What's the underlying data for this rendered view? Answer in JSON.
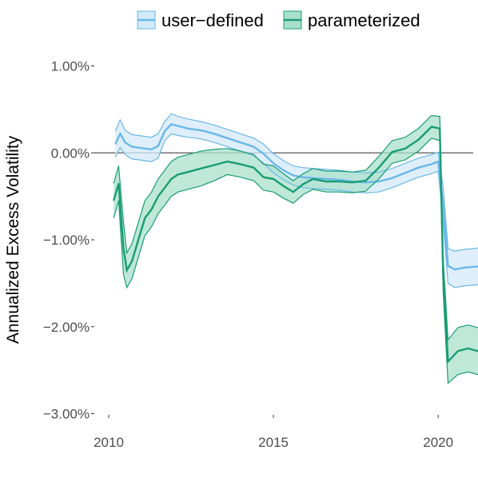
{
  "chart_data": {
    "type": "line",
    "ylabel": "Annualized Excess Volatility",
    "xlabel": "",
    "xlim": [
      2010,
      2021.5
    ],
    "ylim": [
      -3.0,
      1.0
    ],
    "x_ticks": [
      2010,
      2015,
      2020
    ],
    "y_ticks": [
      1.0,
      0.0,
      -1.0,
      -2.0,
      -3.0
    ],
    "y_tick_labels": [
      "1.00%",
      "0.00%",
      "−1.00%",
      "−2.00%",
      "−3.00%"
    ],
    "x_tick_labels": [
      "2010",
      "2015",
      "2020"
    ],
    "reference_line": 0.0,
    "grid": false,
    "legend_position": "top",
    "series": [
      {
        "name": "user−defined",
        "color": "#6bb7e8",
        "band_fill": "#d3eaf9",
        "x": [
          2010.2,
          2010.35,
          2010.5,
          2010.7,
          2010.9,
          2011.1,
          2011.3,
          2011.5,
          2011.7,
          2011.9,
          2012.1,
          2012.4,
          2012.8,
          2013.2,
          2013.6,
          2014.0,
          2014.4,
          2014.7,
          2015.0,
          2015.3,
          2015.6,
          2015.9,
          2016.2,
          2016.6,
          2017.0,
          2017.4,
          2017.8,
          2018.2,
          2018.6,
          2019.0,
          2019.4,
          2019.8,
          2020.0,
          2020.15,
          2020.3,
          2020.5,
          2020.8,
          2021.1,
          2021.4
        ],
        "y": [
          0.1,
          0.22,
          0.12,
          0.07,
          0.06,
          0.05,
          0.04,
          0.08,
          0.25,
          0.33,
          0.31,
          0.28,
          0.26,
          0.22,
          0.17,
          0.12,
          0.07,
          -0.01,
          -0.12,
          -0.2,
          -0.26,
          -0.28,
          -0.29,
          -0.3,
          -0.31,
          -0.33,
          -0.34,
          -0.33,
          -0.29,
          -0.23,
          -0.17,
          -0.13,
          -0.1,
          -0.6,
          -1.3,
          -1.34,
          -1.32,
          -1.31,
          -1.3
        ],
        "lower": [
          -0.05,
          0.06,
          -0.02,
          -0.07,
          -0.08,
          -0.09,
          -0.1,
          -0.06,
          0.14,
          0.22,
          0.2,
          0.18,
          0.16,
          0.12,
          0.07,
          0.02,
          -0.03,
          -0.12,
          -0.23,
          -0.31,
          -0.37,
          -0.4,
          -0.41,
          -0.42,
          -0.43,
          -0.45,
          -0.46,
          -0.45,
          -0.4,
          -0.34,
          -0.28,
          -0.24,
          -0.21,
          -0.8,
          -1.5,
          -1.55,
          -1.53,
          -1.52,
          -1.51
        ],
        "upper": [
          0.25,
          0.38,
          0.26,
          0.21,
          0.2,
          0.19,
          0.18,
          0.22,
          0.36,
          0.45,
          0.42,
          0.39,
          0.36,
          0.32,
          0.27,
          0.22,
          0.17,
          0.1,
          -0.01,
          -0.09,
          -0.15,
          -0.17,
          -0.18,
          -0.19,
          -0.2,
          -0.22,
          -0.23,
          -0.22,
          -0.18,
          -0.12,
          -0.06,
          -0.02,
          0.01,
          -0.4,
          -1.1,
          -1.13,
          -1.11,
          -1.1,
          -1.08
        ]
      },
      {
        "name": "parameterized",
        "color": "#1a9c74",
        "band_fill": "#a9e0cb",
        "x": [
          2010.15,
          2010.3,
          2010.45,
          2010.55,
          2010.7,
          2010.9,
          2011.1,
          2011.3,
          2011.5,
          2011.7,
          2011.9,
          2012.1,
          2012.4,
          2012.8,
          2013.2,
          2013.6,
          2014.0,
          2014.4,
          2014.7,
          2015.0,
          2015.3,
          2015.6,
          2015.9,
          2016.2,
          2016.6,
          2017.0,
          2017.4,
          2017.8,
          2018.2,
          2018.6,
          2019.0,
          2019.4,
          2019.8,
          2020.05,
          2020.15,
          2020.3,
          2020.6,
          2020.9,
          2021.2,
          2021.4
        ],
        "y": [
          -0.55,
          -0.35,
          -1.1,
          -1.35,
          -1.25,
          -1.0,
          -0.75,
          -0.65,
          -0.5,
          -0.4,
          -0.3,
          -0.25,
          -0.22,
          -0.18,
          -0.14,
          -0.1,
          -0.13,
          -0.17,
          -0.28,
          -0.3,
          -0.38,
          -0.45,
          -0.36,
          -0.3,
          -0.33,
          -0.33,
          -0.34,
          -0.32,
          -0.17,
          0.01,
          0.05,
          0.15,
          0.3,
          0.28,
          -1.4,
          -2.4,
          -2.28,
          -2.25,
          -2.28,
          -2.27
        ],
        "lower": [
          -0.75,
          -0.55,
          -1.4,
          -1.55,
          -1.45,
          -1.2,
          -0.95,
          -0.85,
          -0.7,
          -0.6,
          -0.5,
          -0.45,
          -0.42,
          -0.38,
          -0.32,
          -0.25,
          -0.28,
          -0.32,
          -0.43,
          -0.45,
          -0.52,
          -0.58,
          -0.48,
          -0.42,
          -0.45,
          -0.45,
          -0.46,
          -0.44,
          -0.3,
          -0.12,
          -0.08,
          0.02,
          0.17,
          0.14,
          -1.6,
          -2.65,
          -2.55,
          -2.52,
          -2.55,
          -2.54
        ],
        "upper": [
          -0.35,
          -0.15,
          -0.8,
          -1.15,
          -1.05,
          -0.8,
          -0.55,
          -0.45,
          -0.3,
          -0.2,
          -0.1,
          -0.05,
          -0.02,
          0.02,
          0.04,
          0.05,
          0.02,
          -0.02,
          -0.13,
          -0.15,
          -0.24,
          -0.32,
          -0.24,
          -0.18,
          -0.21,
          -0.21,
          -0.22,
          -0.2,
          -0.04,
          0.14,
          0.18,
          0.28,
          0.43,
          0.42,
          -1.2,
          -2.15,
          -2.01,
          -1.98,
          -2.01,
          -2.0
        ]
      }
    ]
  }
}
